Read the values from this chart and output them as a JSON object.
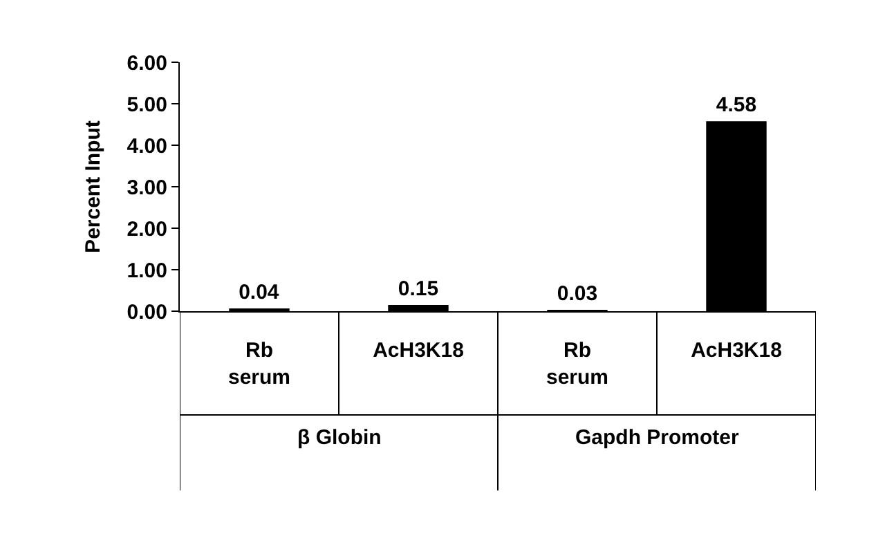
{
  "chart_data": {
    "type": "bar",
    "ylabel": "Percent Input",
    "categories": [
      "Rb serum",
      "AcH3K18",
      "Rb serum",
      "AcH3K18"
    ],
    "values": [
      0.04,
      0.15,
      0.03,
      4.58
    ],
    "color": "#000000",
    "ylim": [
      0,
      6
    ],
    "yticks": [
      {
        "value": 0,
        "label": "0.00"
      },
      {
        "value": 1,
        "label": "1.00"
      },
      {
        "value": 2,
        "label": "2.00"
      },
      {
        "value": 3,
        "label": "3.00"
      },
      {
        "value": 4,
        "label": "4.00"
      },
      {
        "value": 5,
        "label": "5.00"
      },
      {
        "value": 6,
        "label": "6.00"
      }
    ],
    "data_labels": true,
    "legend": false,
    "annotations": [
      "β Globin",
      "Gapdh Promoter"
    ]
  }
}
